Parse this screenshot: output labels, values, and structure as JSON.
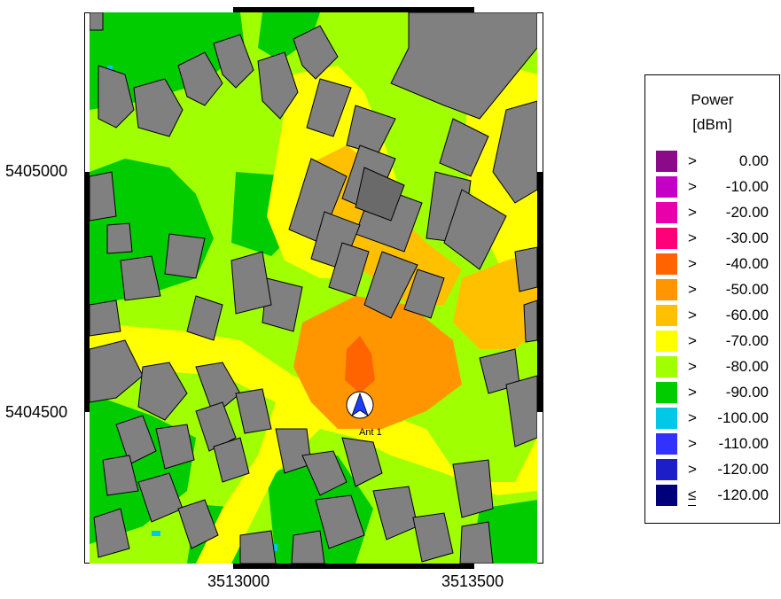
{
  "map": {
    "y_axis": {
      "ticks": [
        "5405000",
        "5404500"
      ]
    },
    "x_axis": {
      "ticks": [
        "3513000",
        "3513500"
      ]
    },
    "antenna": {
      "label": "Ant 1",
      "icon": "antenna-north-arrow-icon"
    }
  },
  "legend": {
    "title": "Power",
    "unit": "[dBm]",
    "entries": [
      {
        "op": ">",
        "value": "0.00",
        "color": "#8a0a8a"
      },
      {
        "op": ">",
        "value": "-10.00",
        "color": "#c300c3"
      },
      {
        "op": ">",
        "value": "-20.00",
        "color": "#e800a8"
      },
      {
        "op": ">",
        "value": "-30.00",
        "color": "#ff0078"
      },
      {
        "op": ">",
        "value": "-40.00",
        "color": "#ff6400"
      },
      {
        "op": ">",
        "value": "-50.00",
        "color": "#ff9600"
      },
      {
        "op": ">",
        "value": "-60.00",
        "color": "#ffc000"
      },
      {
        "op": ">",
        "value": "-70.00",
        "color": "#ffff00"
      },
      {
        "op": ">",
        "value": "-80.00",
        "color": "#a0ff00"
      },
      {
        "op": ">",
        "value": "-90.00",
        "color": "#00cc00"
      },
      {
        "op": ">",
        "value": "-100.00",
        "color": "#00c8e6"
      },
      {
        "op": ">",
        "value": "-110.00",
        "color": "#3232ff"
      },
      {
        "op": ">",
        "value": "-120.00",
        "color": "#1e1ec8"
      },
      {
        "op": "≤",
        "value": "-120.00",
        "color": "#00007a"
      }
    ]
  }
}
